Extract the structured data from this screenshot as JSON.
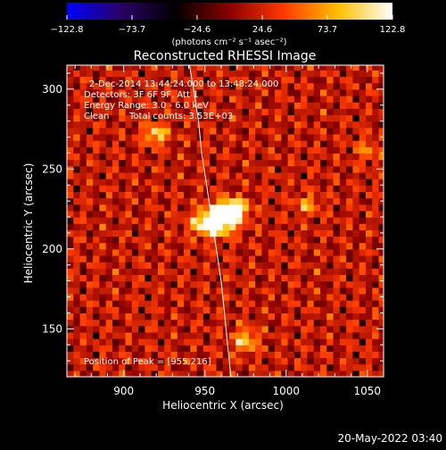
{
  "colorbar": {
    "ticks": [
      "−122.8",
      "−73.7",
      "−24.6",
      "24.6",
      "73.7",
      "122.8"
    ],
    "tick_values": [
      -122.8,
      -73.7,
      -24.6,
      24.6,
      73.7,
      122.8
    ],
    "range": [
      -122.8,
      122.8
    ],
    "unit_label": "(photons cm⁻² s⁻¹ asec⁻²)",
    "stops": [
      "#0000ff",
      "#2a0066",
      "#000000",
      "#8a0000",
      "#ff3a00",
      "#ffc000",
      "#ffffff"
    ]
  },
  "chart_data": {
    "type": "heatmap",
    "title": "Reconstructed RHESSI Image",
    "xlabel": "Heliocentric X (arcsec)",
    "ylabel": "Heliocentric Y (arcsec)",
    "xlim": [
      865,
      1060
    ],
    "ylim": [
      120,
      315
    ],
    "xticks": [
      900,
      950,
      1000,
      1050
    ],
    "yticks": [
      150,
      200,
      250,
      300
    ],
    "annotations": {
      "time": "2-Dec-2014 13:44:24.000 to 13:48:24.000",
      "detectors": "Detectors: 3F 6F 9F, Att 1",
      "energy": "Energy Range: 3.0 - 6.0 keV",
      "method": "Clean",
      "counts": "Total counts: 3.53E+03",
      "peak": "Position of Peak = [955,216]"
    },
    "peak": [
      955,
      216
    ],
    "sources": [
      {
        "x": 955,
        "y": 216,
        "amp": 122.8,
        "sx": 8,
        "sy": 5
      },
      {
        "x": 962,
        "y": 222,
        "amp": 95,
        "sx": 7,
        "sy": 5
      },
      {
        "x": 968,
        "y": 226,
        "amp": 70,
        "sx": 6,
        "sy": 4
      },
      {
        "x": 920,
        "y": 272,
        "amp": 70,
        "sx": 5,
        "sy": 4
      },
      {
        "x": 975,
        "y": 143,
        "amp": 60,
        "sx": 5,
        "sy": 5
      },
      {
        "x": 1013,
        "y": 228,
        "amp": 45,
        "sx": 5,
        "sy": 4
      },
      {
        "x": 1050,
        "y": 262,
        "amp": 32,
        "sx": 5,
        "sy": 5
      }
    ],
    "limb_curve": [
      [
        940,
        318
      ],
      [
        943,
        300
      ],
      [
        946,
        280
      ],
      [
        948,
        260
      ],
      [
        951,
        240
      ],
      [
        954,
        220
      ],
      [
        957,
        200
      ],
      [
        960,
        180
      ],
      [
        962,
        160
      ],
      [
        964,
        140
      ],
      [
        966,
        120
      ]
    ]
  },
  "footer": {
    "date": "20-May-2022 03:40"
  }
}
